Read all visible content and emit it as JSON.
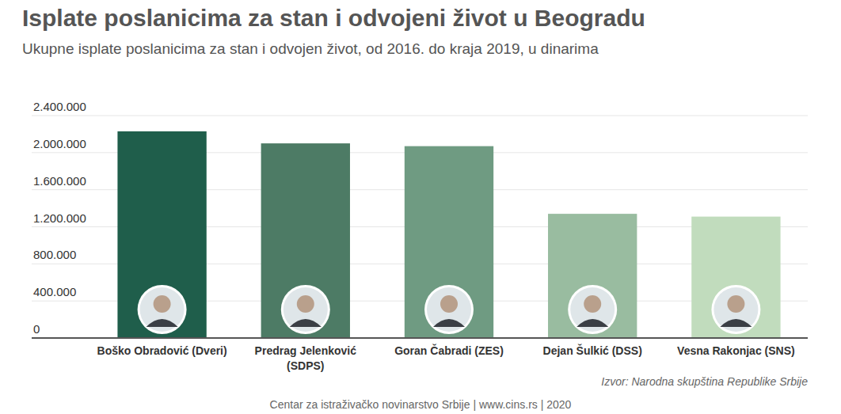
{
  "chart_data": {
    "type": "bar",
    "title": "Isplate poslanicima za stan i odvojeni život u Beogradu",
    "subtitle": "Ukupne isplate poslanicima za stan i odvojen život, od 2016. do kraja 2019, u dinarima",
    "categories": [
      "Boško Obradović (Dveri)",
      "Predrag Jelenković (SDPS)",
      "Goran Čabradi (ZES)",
      "Dejan Šulkić (DSS)",
      "Vesna Rakonjac (SNS)"
    ],
    "values": [
      2230000,
      2100000,
      2070000,
      1340000,
      1310000
    ],
    "colors": [
      "#1f5e4b",
      "#4d7b65",
      "#6f9b82",
      "#99bca0",
      "#c1dcbd"
    ],
    "ylim": [
      0,
      2400000
    ],
    "yticks": [
      0,
      {
        "value": 400000,
        "label": "400.000"
      },
      {
        "value": 800000,
        "label": "800.000"
      },
      {
        "value": 1200000,
        "label": "1.200.000"
      },
      {
        "value": 1600000,
        "label": "1.600.000"
      },
      {
        "value": 2000000,
        "label": "2.000.000"
      },
      {
        "value": 2400000,
        "label": "2.400.000"
      }
    ],
    "grid": true,
    "source": "Izvor: Narodna skupština Republike Srbije",
    "footer": "Centar za istraživačko novinarstvo Srbije | www.cins.rs | 2020"
  }
}
